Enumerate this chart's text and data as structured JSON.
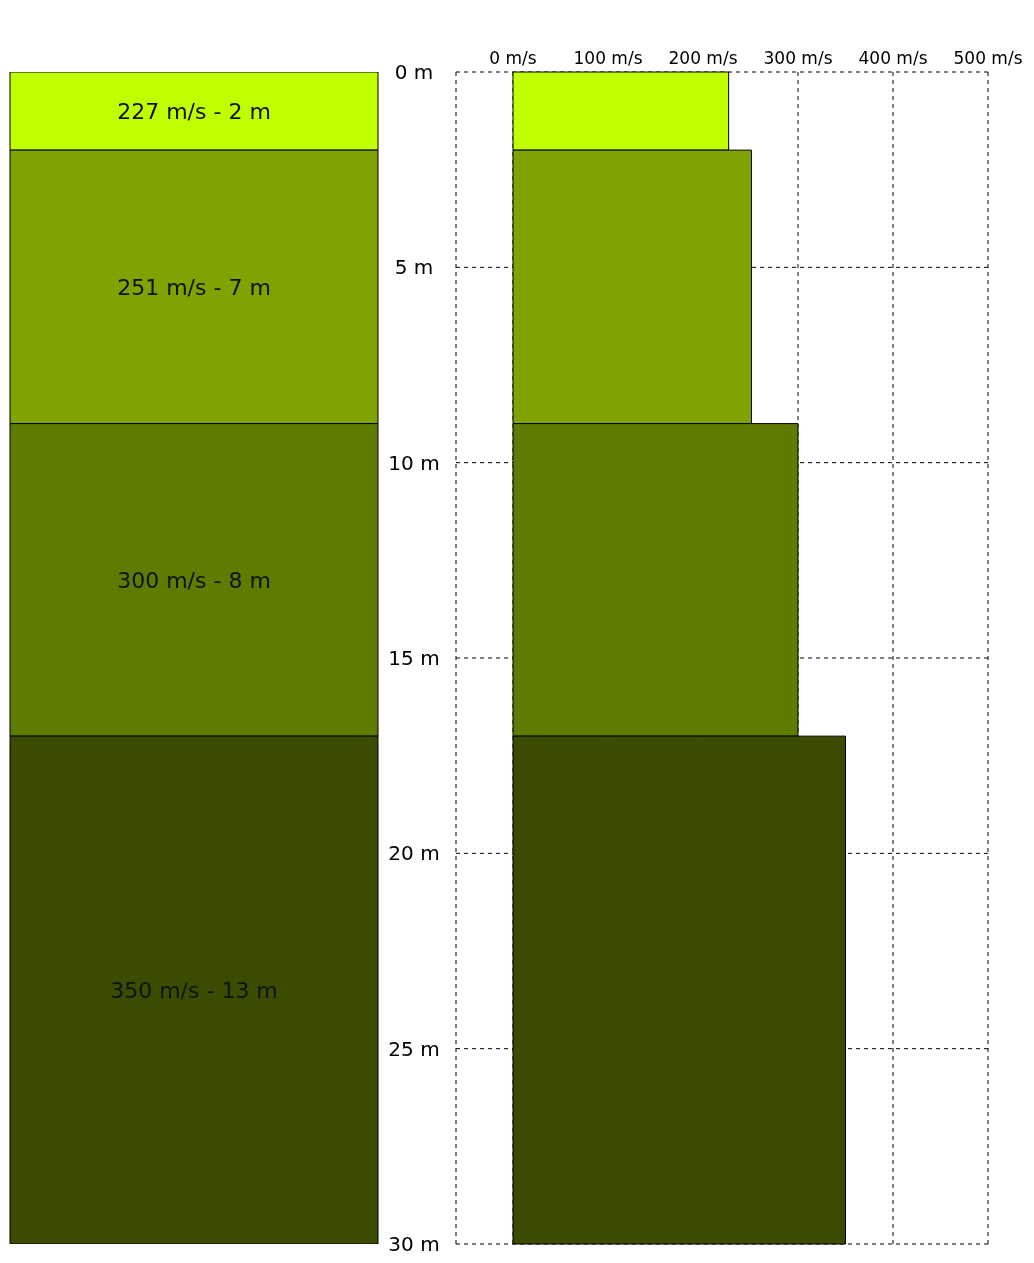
{
  "chart_data": [
    {
      "type": "bar",
      "stacked": true,
      "categories": [
        null
      ],
      "ylim": [
        30,
        0
      ],
      "yticks": [
        {
          "value": 0,
          "label": "0 m"
        },
        {
          "value": 5,
          "label": "5 m"
        },
        {
          "value": 10,
          "label": "10 m"
        },
        {
          "value": 15,
          "label": "15 m"
        },
        {
          "value": 20,
          "label": "20 m"
        },
        {
          "value": 25,
          "label": "25 m"
        },
        {
          "value": 30,
          "label": "30 m"
        }
      ],
      "tick_labels": "y",
      "annotations": [
        "227 m/s - 2 m",
        "251 m/s - 7 m",
        "300 m/s - 8 m",
        "350 m/s - 13 m"
      ],
      "series": [
        {
          "color": "#c0ff00",
          "values": [
            2
          ]
        },
        {
          "color": "#7fa300",
          "values": [
            7
          ]
        },
        {
          "color": "#5e7d00",
          "values": [
            8
          ]
        },
        {
          "color": "#3b4c00",
          "values": [
            13
          ]
        }
      ]
    },
    {
      "type": "histogram",
      "orientation": "horizontal",
      "bins": [
        0,
        2,
        9,
        17,
        30
      ],
      "values": [
        227,
        251,
        300,
        350
      ],
      "colors": [
        "#c0ff00",
        "#7fa300",
        "#5e7d00",
        "#3b4c00"
      ],
      "xlim": [
        -60,
        500
      ],
      "xticks": [
        {
          "value": 0,
          "label": "0 m/s"
        },
        {
          "value": 100,
          "label": "100 m/s"
        },
        {
          "value": 200,
          "label": "200 m/s"
        },
        {
          "value": 300,
          "label": "300 m/s"
        },
        {
          "value": 400,
          "label": "400 m/s"
        },
        {
          "value": 500,
          "label": "500 m/s"
        }
      ],
      "ylim": [
        30,
        0
      ],
      "yticks": [
        0,
        5,
        10,
        15,
        20,
        25,
        30
      ],
      "tick_labels": "x",
      "grid": true
    }
  ]
}
